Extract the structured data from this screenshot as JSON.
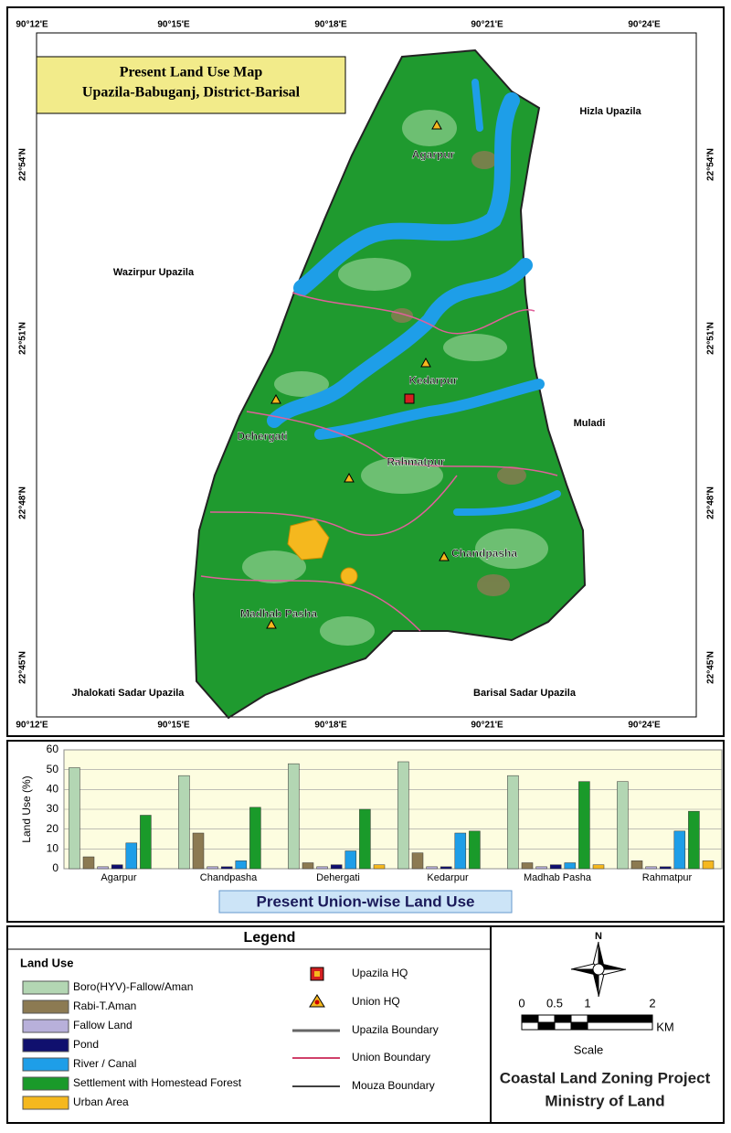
{
  "map": {
    "title_lines": [
      "Present Land Use  Map",
      "Upazila-Babuganj, District-Barisal"
    ],
    "longitude_labels": [
      "90°12'E",
      "90°15'E",
      "90°18'E",
      "90°21'E",
      "90°24'E"
    ],
    "latitude_labels": [
      "22°54'N",
      "22°51'N",
      "22°48'N",
      "22°45'N"
    ],
    "neighbor_labels": [
      "Hizla Upazila",
      "Wazirpur Upazila",
      "Muladi",
      "Jhalokati Sadar Upazila",
      "Barisal Sadar Upazila"
    ],
    "union_labels": [
      "Agarpur",
      "Kedarpur",
      "Dehergati",
      "Rahmatpur",
      "Chandpasha",
      "Madhab Pasha"
    ]
  },
  "chart_data": {
    "type": "bar",
    "title": "Present Union-wise Land Use",
    "y_label": "Land Use (%)",
    "categories": [
      "Agarpur",
      "Chandpasha",
      "Dehergati",
      "Kedarpur",
      "Madhab Pasha",
      "Rahmatpur"
    ],
    "series": [
      {
        "name": "Boro(HYV)-Fallow/Aman",
        "color": "#b3d6b3",
        "values": [
          51,
          47,
          53,
          54,
          47,
          44
        ]
      },
      {
        "name": "Rabi-T.Aman",
        "color": "#8c7a52",
        "values": [
          6,
          18,
          3,
          8,
          3,
          4
        ]
      },
      {
        "name": "Fallow Land",
        "color": "#b8b0da",
        "values": [
          1,
          1,
          1,
          1,
          1,
          1
        ]
      },
      {
        "name": "Pond",
        "color": "#10106e",
        "values": [
          2,
          1,
          2,
          1,
          2,
          1
        ]
      },
      {
        "name": "River / Canal",
        "color": "#1e9ee8",
        "values": [
          13,
          4,
          9,
          18,
          3,
          19
        ]
      },
      {
        "name": "Settlement with Homestead Forest",
        "color": "#1a9a2a",
        "values": [
          27,
          31,
          30,
          19,
          44,
          29
        ]
      },
      {
        "name": "Urban Area",
        "color": "#f5b81e",
        "values": [
          0,
          0,
          2,
          0,
          2,
          4
        ]
      }
    ],
    "ylim": [
      0,
      60
    ],
    "yticks": [
      0,
      10,
      20,
      30,
      40,
      50,
      60
    ],
    "grid": true
  },
  "legend": {
    "title": "Legend",
    "land_use_heading": "Land Use",
    "symbols": [
      "Upazila HQ",
      "Union HQ",
      "Upazila Boundary",
      "Union Boundary",
      "Mouza Boundary"
    ]
  },
  "scale": {
    "north": "N",
    "ticks": [
      "0",
      "0.5",
      "1",
      "2"
    ],
    "unit": "KM",
    "caption": "Scale"
  },
  "credits": [
    "Coastal Land Zoning Project",
    "Ministry of Land"
  ]
}
